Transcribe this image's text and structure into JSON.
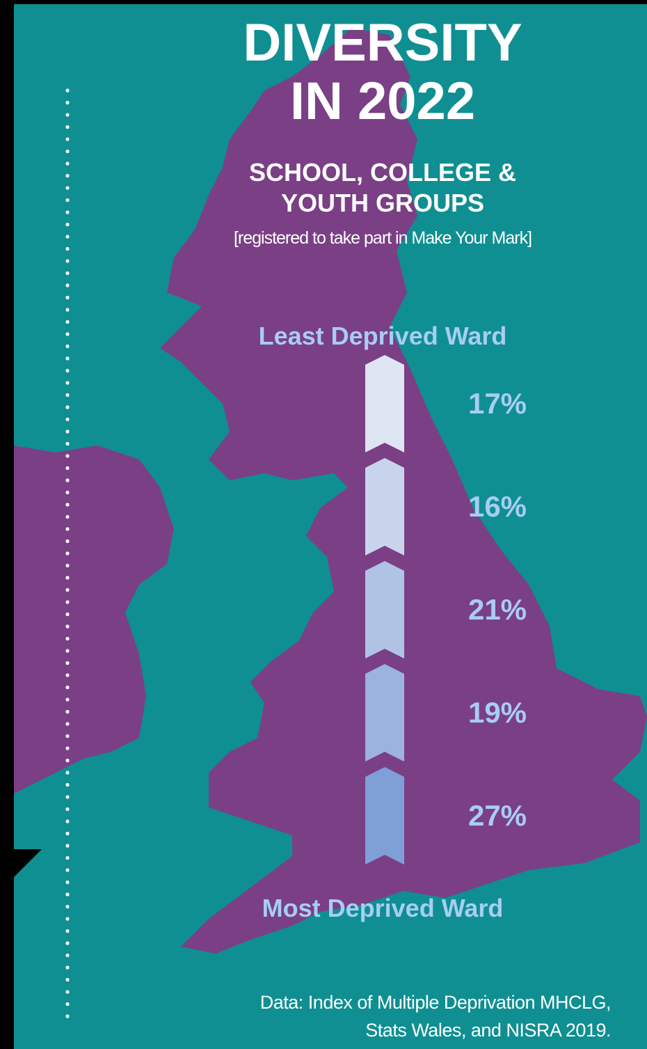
{
  "title": {
    "line1": "DIVERSITY",
    "line2": "IN 2022"
  },
  "subtitle": {
    "line1": "SCHOOL, COLLEGE &",
    "line2": "YOUTH GROUPS"
  },
  "note": "[registered to take part in Make Your Mark]",
  "source": {
    "line1": "Data: Index of Multiple Deprivation MHCLG,",
    "line2": "Stats Wales, and NISRA 2019."
  },
  "colors": {
    "background": "#0f8f92",
    "map": "#7b3f86",
    "title": "#ffffff",
    "label": "#a8cdf2",
    "value": "#a8cdf2",
    "segments": [
      "#dde4f2",
      "#c8d4ec",
      "#b1c3e5",
      "#9bb3dd",
      "#7fa0d6"
    ]
  },
  "chart_data": {
    "type": "bar",
    "orientation": "vertical stacked arrow",
    "top_label": "Least Deprived Ward",
    "bottom_label": "Most Deprived Ward",
    "categories": [
      "",
      "",
      "",
      "",
      ""
    ],
    "values": [
      17,
      16,
      21,
      19,
      27
    ],
    "value_labels": [
      "17%",
      "16%",
      "21%",
      "19%",
      "27%"
    ],
    "unit": "%"
  }
}
